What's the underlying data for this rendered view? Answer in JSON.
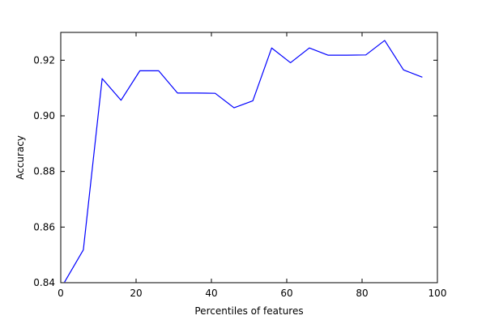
{
  "chart_data": {
    "type": "line",
    "title": "",
    "xlabel": "Percentiles of features",
    "ylabel": "Accuracy",
    "xlim": [
      0,
      100
    ],
    "ylim": [
      0.84,
      0.93
    ],
    "x_ticks": [
      0,
      20,
      40,
      60,
      80,
      100
    ],
    "y_ticks": [
      0.84,
      0.86,
      0.88,
      0.9,
      0.92
    ],
    "x_tick_labels": [
      "0",
      "20",
      "40",
      "60",
      "80",
      "100"
    ],
    "y_tick_labels": [
      "0.84",
      "0.86",
      "0.88",
      "0.90",
      "0.92"
    ],
    "grid": false,
    "series": [
      {
        "color": "#0000ff",
        "x": [
          1,
          6,
          11,
          16,
          21,
          26,
          31,
          36,
          41,
          46,
          51,
          56,
          61,
          66,
          71,
          76,
          81,
          86,
          91,
          96
        ],
        "y": [
          0.8402,
          0.8518,
          0.9134,
          0.9056,
          0.9162,
          0.9162,
          0.9082,
          0.9082,
          0.9081,
          0.9029,
          0.9054,
          0.9244,
          0.9191,
          0.9244,
          0.9218,
          0.9218,
          0.9219,
          0.9271,
          0.9165,
          0.9139
        ]
      }
    ]
  }
}
